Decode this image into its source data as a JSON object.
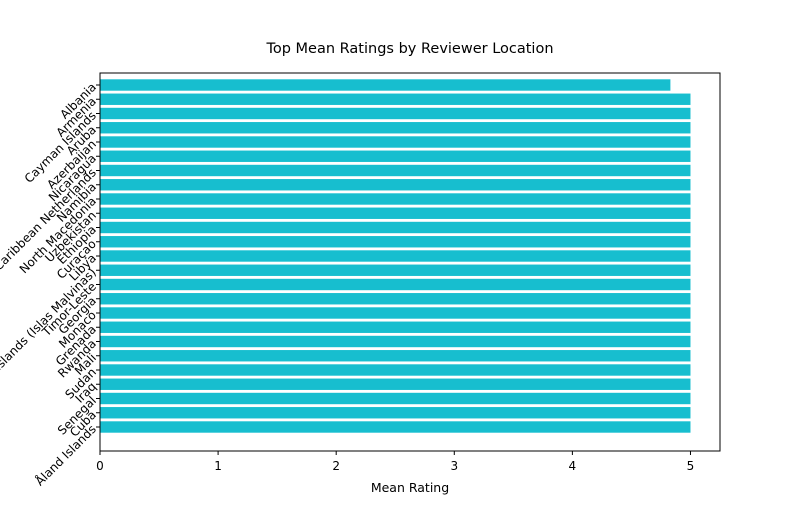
{
  "chart_data": {
    "type": "bar",
    "orientation": "horizontal",
    "title": "Top Mean Ratings by Reviewer Location",
    "xlabel": "Mean Rating",
    "ylabel": "",
    "xlim": [
      0,
      5.25
    ],
    "x_ticks": [
      0,
      1,
      2,
      3,
      4,
      5
    ],
    "grid": false,
    "bar_color": "#17becf",
    "categories": [
      "Albania",
      "Armenia",
      "Cayman Islands",
      "Aruba",
      "Azerbaijan",
      "Nicaragua",
      "Caribbean Netherlands",
      "Namibia",
      "North Macedonia",
      "Uzbekistan",
      "Ethiopia",
      "Curaçao",
      "Libya",
      "Falkland Islands (Islas Malvinas)",
      "Timor-Leste",
      "Georgia",
      "Monaco",
      "Grenada",
      "Rwanda",
      "Mali",
      "Sudan",
      "Iraq",
      "Senegal",
      "Cuba",
      "Åland Islands"
    ],
    "values": [
      4.83,
      5,
      5,
      5,
      5,
      5,
      5,
      5,
      5,
      5,
      5,
      5,
      5,
      5,
      5,
      5,
      5,
      5,
      5,
      5,
      5,
      5,
      5,
      5,
      5
    ]
  }
}
